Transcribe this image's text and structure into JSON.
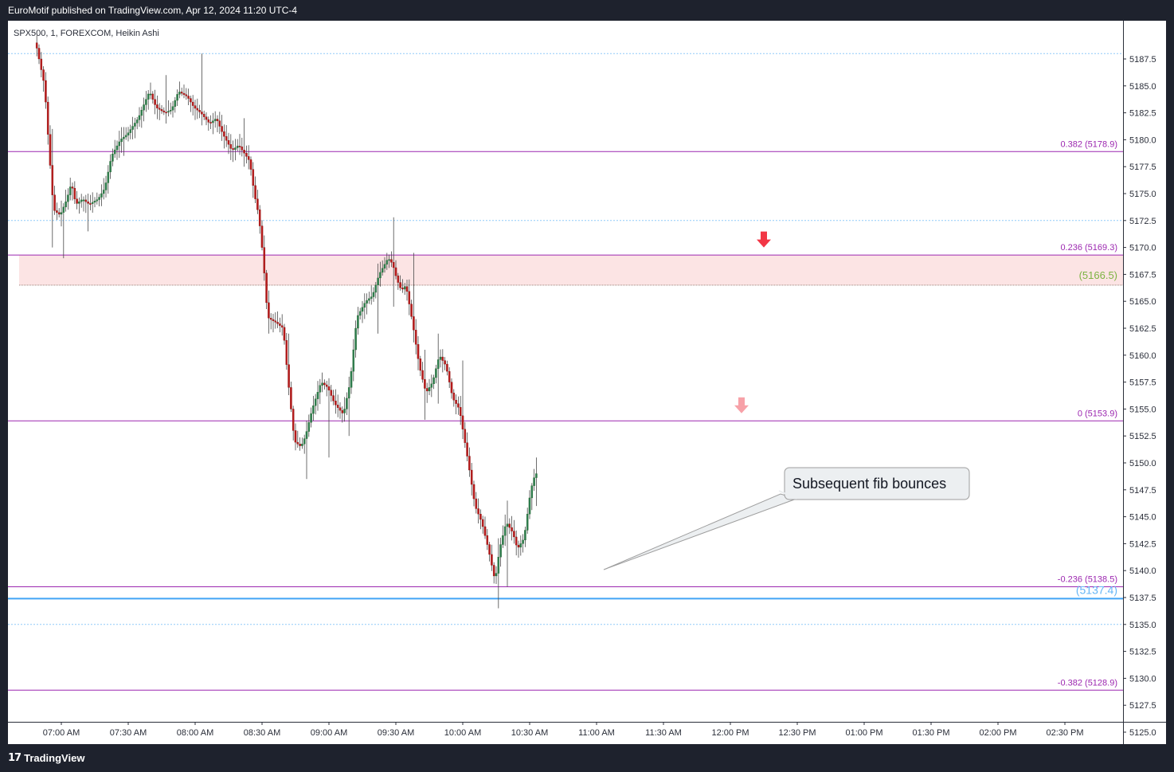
{
  "header": {
    "publisher": "EuroMotif published on TradingView.com, Apr 12, 2024 11:20 UTC-4"
  },
  "symbol": {
    "label": "SPX500, 1, FOREXCOM, Heikin Ashi"
  },
  "footer": {
    "logo_glyph": "17",
    "logo_text": "TradingView"
  },
  "colors": {
    "bull": "#26a69a",
    "bull_body": "#2e7d4f",
    "bear": "#b71c1c",
    "fib": "#9c27b0",
    "support": "#42a5f5",
    "zone": "#fce4e4",
    "arrow_strong": "#f23645",
    "arrow_light": "#f7a1a8"
  },
  "annotation": {
    "text": "Subsequent fib bounces"
  },
  "chart_data": {
    "type": "candlestick",
    "style": "Heikin Ashi",
    "y_axis": {
      "ticks": [
        "5187.5",
        "5185.0",
        "5182.5",
        "5180.0",
        "5177.5",
        "5175.0",
        "5172.5",
        "5170.0",
        "5167.5",
        "5165.0",
        "5162.5",
        "5160.0",
        "5157.5",
        "5155.0",
        "5152.5",
        "5150.0",
        "5147.5",
        "5145.0",
        "5142.5",
        "5140.0",
        "5137.5",
        "5135.0",
        "5132.5",
        "5130.0",
        "5127.5",
        "5125.0"
      ],
      "range": [
        5123.5,
        5189.5
      ]
    },
    "x_axis": {
      "ticks": [
        "07:00 AM",
        "07:30 AM",
        "08:00 AM",
        "08:30 AM",
        "09:00 AM",
        "09:30 AM",
        "10:00 AM",
        "10:30 AM",
        "11:00 AM",
        "11:30 AM",
        "12:00 PM",
        "12:30 PM",
        "01:00 PM",
        "01:30 PM",
        "02:00 PM",
        "02:30 PM"
      ]
    },
    "fib_levels": [
      {
        "label": "0.382 (5178.9)",
        "value": 5178.9
      },
      {
        "label": "0.236 (5169.3)",
        "value": 5169.3
      },
      {
        "label": "0 (5153.9)",
        "value": 5153.9
      },
      {
        "label": "-0.236 (5138.5)",
        "value": 5138.5
      },
      {
        "label": "-0.382 (5128.9)",
        "value": 5128.9
      }
    ],
    "dotted_levels": [
      5188.0,
      5172.5,
      5135.0
    ],
    "zone": {
      "top": 5169.3,
      "bottom": 5166.5,
      "label": "(5166.5)"
    },
    "support": {
      "value": 5137.4,
      "label": "(5137.4)"
    },
    "arrows": [
      {
        "time": "12:15 PM",
        "price": 5170.0,
        "style": "strong"
      },
      {
        "time": "12:05 PM",
        "price": 5154.6,
        "style": "light"
      }
    ],
    "path": [
      [
        "06:49 AM",
        5189.0
      ],
      [
        "06:53 AM",
        5185.0
      ],
      [
        "06:55 AM",
        5179.0
      ],
      [
        "06:57 AM",
        5173.5
      ],
      [
        "07:00 AM",
        5173.0
      ],
      [
        "07:03 AM",
        5174.5
      ],
      [
        "07:05 AM",
        5176.0
      ],
      [
        "07:07 AM",
        5174.0
      ],
      [
        "07:10 AM",
        5174.5
      ],
      [
        "07:13 AM",
        5174.0
      ],
      [
        "07:17 AM",
        5174.5
      ],
      [
        "07:20 AM",
        5175.5
      ],
      [
        "07:23 AM",
        5178.5
      ],
      [
        "07:27 AM",
        5180.0
      ],
      [
        "07:30 AM",
        5180.5
      ],
      [
        "07:35 AM",
        5182.0
      ],
      [
        "07:40 AM",
        5184.5
      ],
      [
        "07:43 AM",
        5183.0
      ],
      [
        "07:47 AM",
        5182.5
      ],
      [
        "07:50 AM",
        5182.8
      ],
      [
        "07:53 AM",
        5184.5
      ],
      [
        "07:57 AM",
        5184.0
      ],
      [
        "08:00 AM",
        5183.0
      ],
      [
        "08:03 AM",
        5182.5
      ],
      [
        "08:07 AM",
        5181.5
      ],
      [
        "08:10 AM",
        5182.0
      ],
      [
        "08:13 AM",
        5180.5
      ],
      [
        "08:17 AM",
        5179.0
      ],
      [
        "08:20 AM",
        5179.5
      ],
      [
        "08:25 AM",
        5178.0
      ],
      [
        "08:27 AM",
        5175.0
      ],
      [
        "08:29 AM",
        5173.0
      ],
      [
        "08:31 AM",
        5169.0
      ],
      [
        "08:33 AM",
        5163.5
      ],
      [
        "08:37 AM",
        5163.0
      ],
      [
        "08:40 AM",
        5162.5
      ],
      [
        "08:42 AM",
        5158.0
      ],
      [
        "08:45 AM",
        5152.0
      ],
      [
        "08:48 AM",
        5151.5
      ],
      [
        "08:50 AM",
        5152.5
      ],
      [
        "08:53 AM",
        5155.0
      ],
      [
        "08:57 AM",
        5157.5
      ],
      [
        "09:00 AM",
        5157.0
      ],
      [
        "09:03 AM",
        5155.5
      ],
      [
        "09:07 AM",
        5154.5
      ],
      [
        "09:10 AM",
        5157.5
      ],
      [
        "09:13 AM",
        5163.5
      ],
      [
        "09:17 AM",
        5165.0
      ],
      [
        "09:20 AM",
        5165.5
      ],
      [
        "09:23 AM",
        5167.5
      ],
      [
        "09:27 AM",
        5169.0
      ],
      [
        "09:29 AM",
        5168.5
      ],
      [
        "09:31 AM",
        5167.0
      ],
      [
        "09:33 AM",
        5166.0
      ],
      [
        "09:35 AM",
        5166.5
      ],
      [
        "09:38 AM",
        5163.0
      ],
      [
        "09:41 AM",
        5159.0
      ],
      [
        "09:44 AM",
        5156.5
      ],
      [
        "09:47 AM",
        5157.5
      ],
      [
        "09:50 AM",
        5160.0
      ],
      [
        "09:53 AM",
        5159.0
      ],
      [
        "09:56 AM",
        5156.0
      ],
      [
        "09:59 AM",
        5155.0
      ],
      [
        "10:03 AM",
        5150.0
      ],
      [
        "10:06 AM",
        5146.0
      ],
      [
        "10:09 AM",
        5144.5
      ],
      [
        "10:12 AM",
        5142.0
      ],
      [
        "10:15 AM",
        5139.0
      ],
      [
        "10:17 AM",
        5142.0
      ],
      [
        "10:20 AM",
        5144.5
      ],
      [
        "10:23 AM",
        5143.5
      ],
      [
        "10:25 AM",
        5142.0
      ],
      [
        "10:28 AM",
        5143.0
      ],
      [
        "10:31 AM",
        5147.5
      ],
      [
        "10:33 AM",
        5149.0
      ]
    ],
    "wicks": [
      [
        "06:56 AM",
        5181.0,
        5170.0
      ],
      [
        "07:01 AM",
        5172.0,
        5169.0
      ],
      [
        "07:12 AM",
        5175.0,
        5171.5
      ],
      [
        "07:28 AM",
        5181.0,
        5178.5
      ],
      [
        "07:47 AM",
        5186.0,
        5181.5
      ],
      [
        "08:03 AM",
        5188.0,
        5183.0
      ],
      [
        "08:22 AM",
        5182.0,
        5177.5
      ],
      [
        "08:33 AM",
        5166.0,
        5162.0
      ],
      [
        "08:42 AM",
        5162.0,
        5160.0
      ],
      [
        "08:50 AM",
        5152.0,
        5148.5
      ],
      [
        "09:00 AM",
        5156.0,
        5150.5
      ],
      [
        "09:09 AM",
        5158.0,
        5152.5
      ],
      [
        "09:22 AM",
        5168.5,
        5162.0
      ],
      [
        "09:29 AM",
        5172.8,
        5164.5
      ],
      [
        "09:38 AM",
        5169.5,
        5162.5
      ],
      [
        "09:43 AM",
        5160.5,
        5154.0
      ],
      [
        "09:49 AM",
        5162.0,
        5155.5
      ],
      [
        "10:00 AM",
        5159.5,
        5153.0
      ],
      [
        "10:16 AM",
        5143.0,
        5136.5
      ],
      [
        "10:20 AM",
        5146.5,
        5138.5
      ],
      [
        "10:33 AM",
        5150.5,
        5146.0
      ]
    ]
  }
}
